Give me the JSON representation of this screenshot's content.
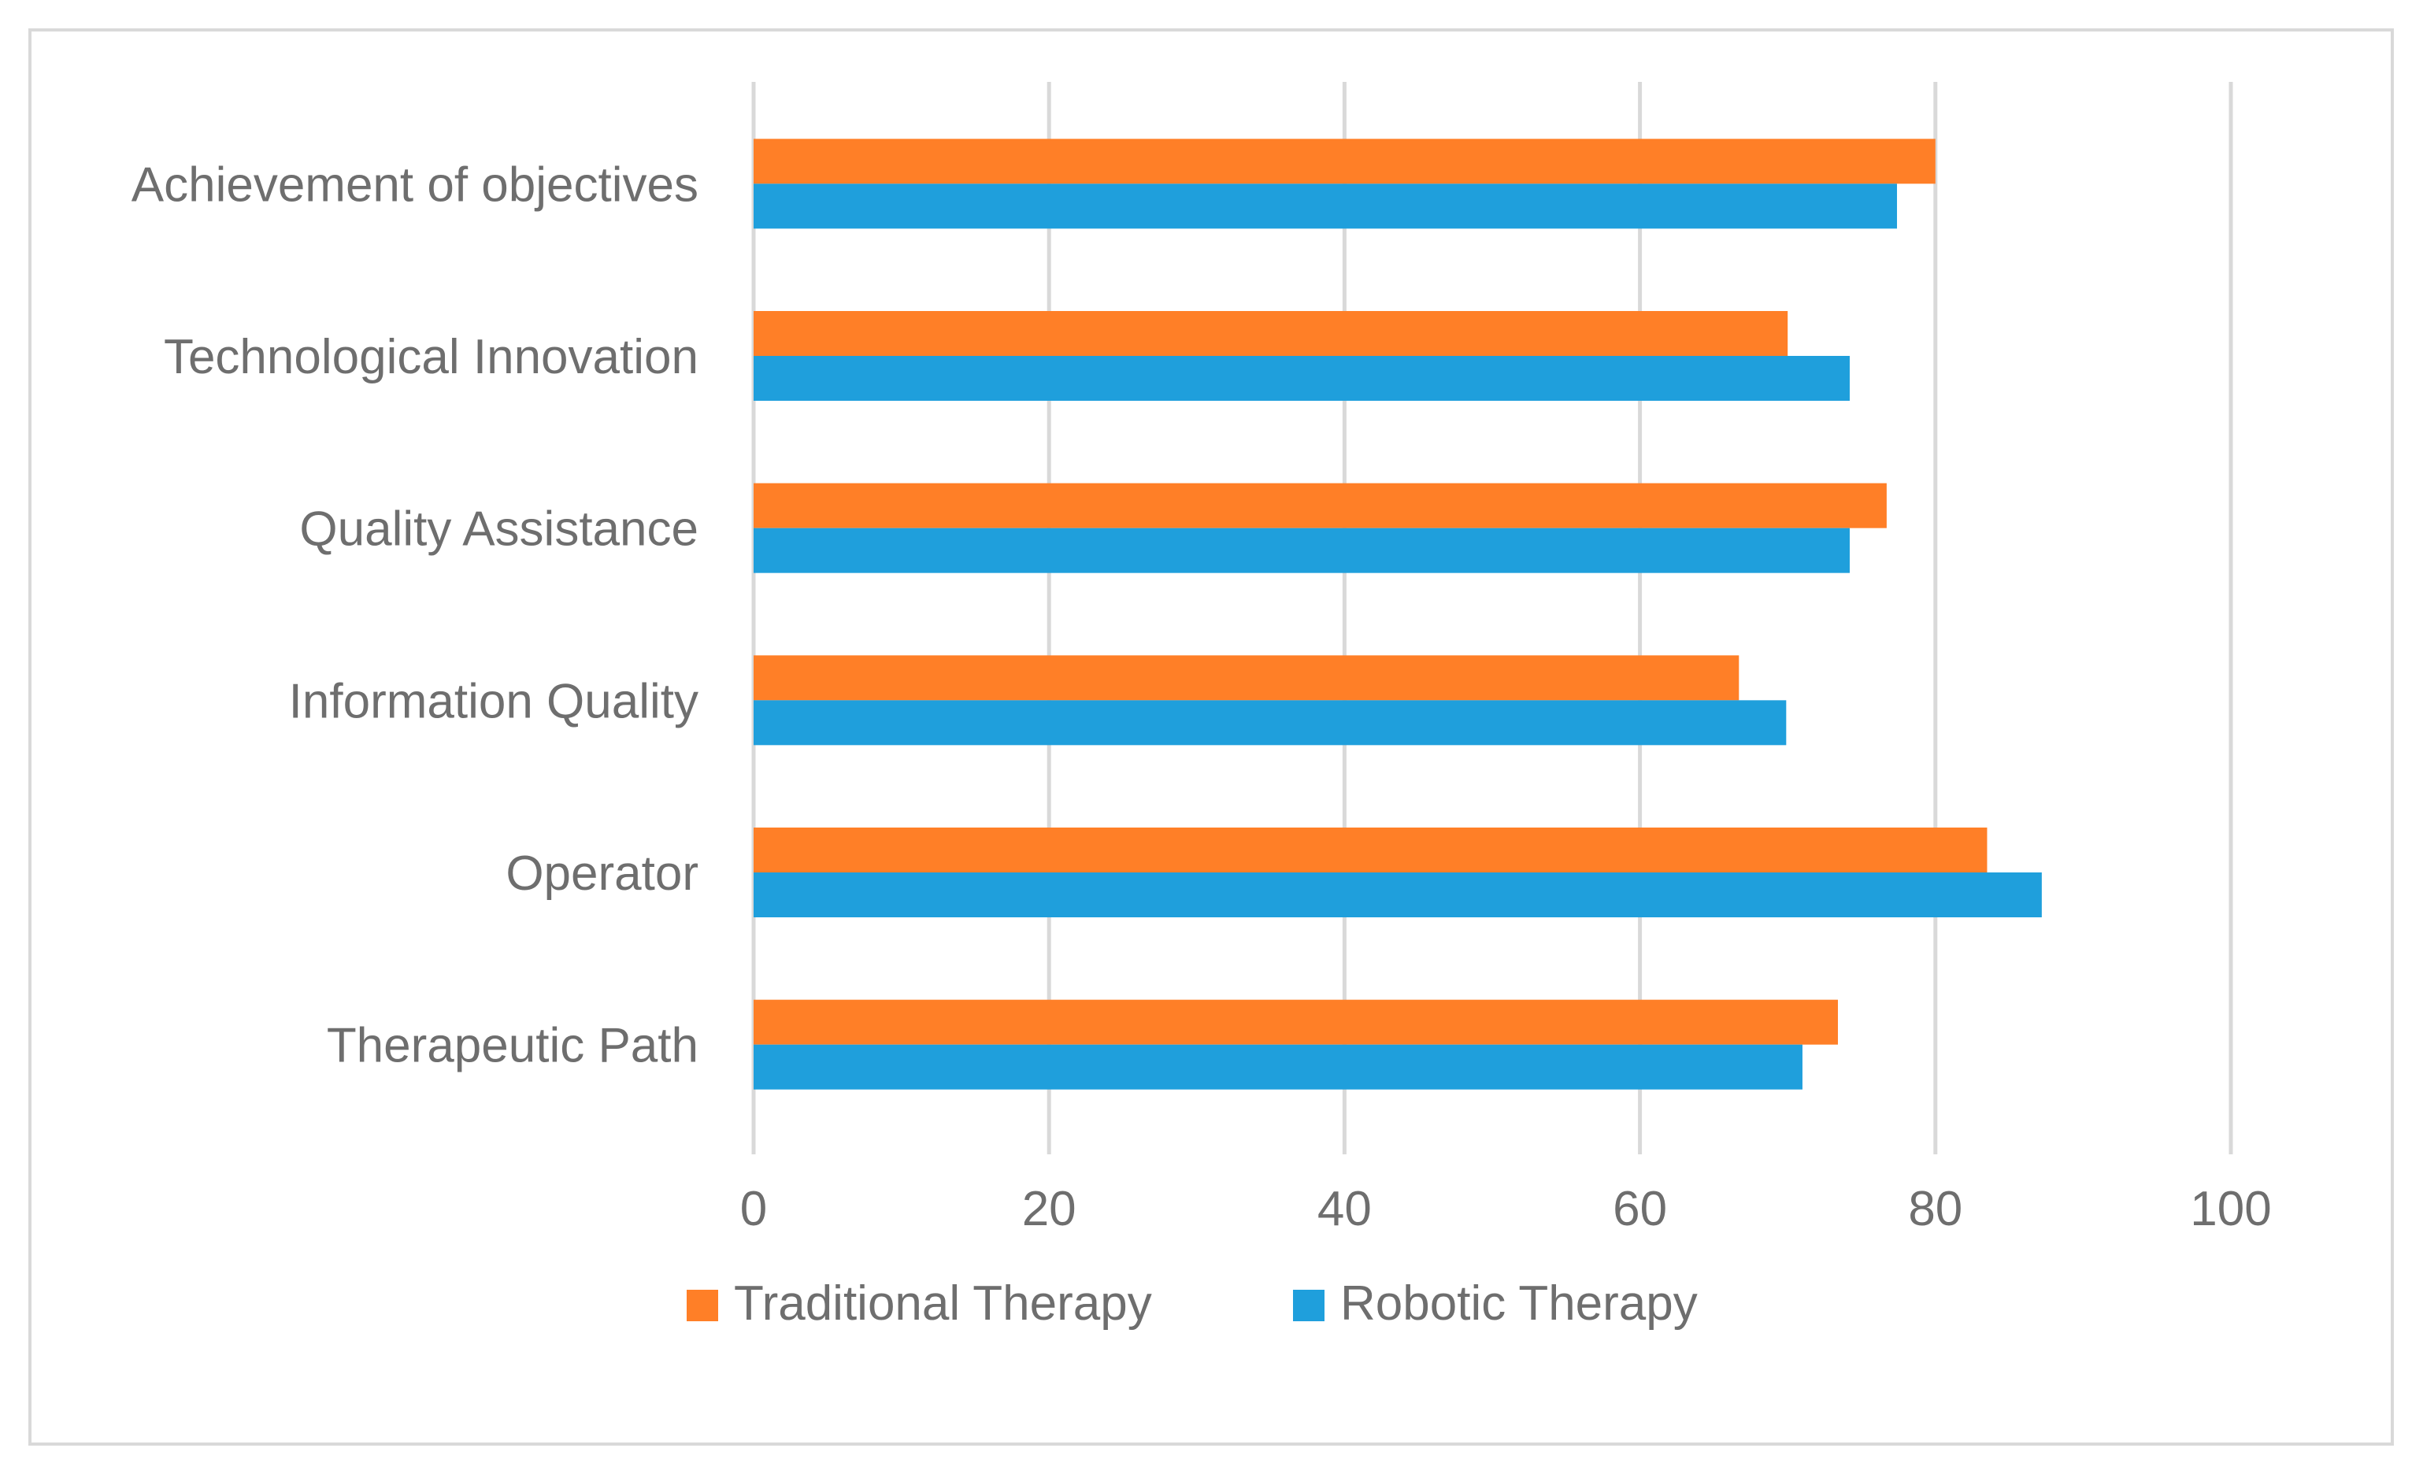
{
  "chart_data": {
    "type": "bar",
    "orientation": "horizontal",
    "categories": [
      "Achievement of objectives",
      "Technological Innovation",
      "Quality Assistance",
      "Information Quality",
      "Operator",
      "Therapeutic Path"
    ],
    "series": [
      {
        "name": "Traditional Therapy",
        "color": "#ff7f27",
        "values": [
          80,
          70,
          76.7,
          66.7,
          83.5,
          73.4
        ]
      },
      {
        "name": "Robotic Therapy",
        "color": "#1f9fdc",
        "values": [
          77.4,
          74.2,
          74.2,
          69.9,
          87.2,
          71.0
        ]
      }
    ],
    "xlim": [
      0,
      100
    ],
    "xticks": [
      "0",
      "20",
      "40",
      "60",
      "80",
      "100"
    ],
    "grid": true,
    "legend_position": "bottom"
  }
}
